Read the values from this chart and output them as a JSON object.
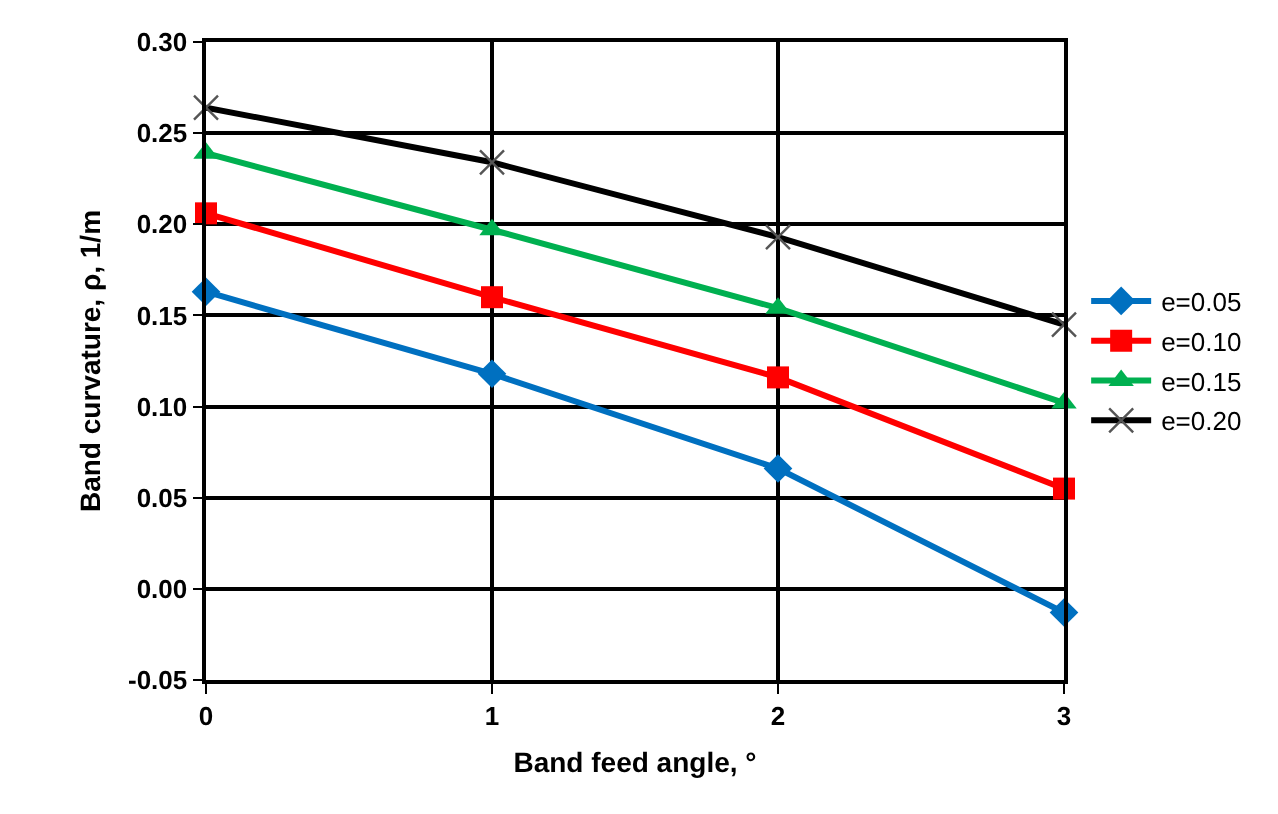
{
  "chart_data": {
    "type": "line",
    "xlabel": "Band feed angle, °",
    "ylabel": "Band curvature, ρ, 1/m",
    "x": [
      0,
      1,
      2,
      3
    ],
    "xlim": [
      0,
      3
    ],
    "xticks": [
      0,
      1,
      2,
      3
    ],
    "ylim": [
      -0.05,
      0.3
    ],
    "yticks": [
      {
        "value": -0.05,
        "label": "-0.05"
      },
      {
        "value": 0,
        "label": "0.00"
      },
      {
        "value": 0.05,
        "label": "0.05"
      },
      {
        "value": 0.1,
        "label": "0.10"
      },
      {
        "value": 0.15,
        "label": "0.15"
      },
      {
        "value": 0.2,
        "label": "0.20"
      },
      {
        "value": 0.25,
        "label": "0.25"
      },
      {
        "value": 0.3,
        "label": "0.30"
      }
    ],
    "grid": true,
    "legend": "right",
    "line_style": "solid",
    "series": [
      {
        "name": "e=0.05",
        "color": "#0070c0",
        "marker": "diamond",
        "values": [
          0.163,
          0.118,
          0.066,
          -0.013
        ]
      },
      {
        "name": "e=0.10",
        "color": "#ff0000",
        "marker": "square",
        "values": [
          0.206,
          0.16,
          0.116,
          0.055
        ]
      },
      {
        "name": "e=0.15",
        "color": "#00b050",
        "marker": "triangle",
        "values": [
          0.239,
          0.197,
          0.154,
          0.102
        ]
      },
      {
        "name": "e=0.20",
        "color": "#000000",
        "marker": "cross",
        "values": [
          0.264,
          0.234,
          0.193,
          0.145
        ]
      }
    ]
  }
}
